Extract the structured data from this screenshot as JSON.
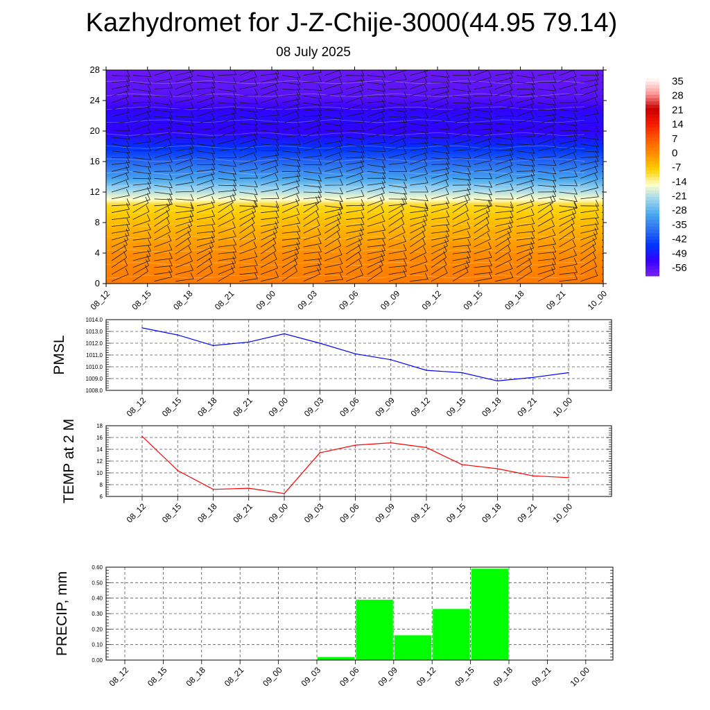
{
  "header": {
    "title": "Kazhydromet for J-Z-Chije-3000(44.95 79.14)",
    "date": "08 July 2025"
  },
  "colors": {
    "pmsl_line": "#0000ff",
    "temp_line": "#ff0000",
    "precip_bar": "#00ff00",
    "grid": "#555555"
  },
  "chart_data": [
    {
      "type": "heatmap",
      "x_ticks": [
        "08_12",
        "08_15",
        "08_18",
        "08_21",
        "09_00",
        "09_03",
        "09_06",
        "09_09",
        "09_12",
        "09_15",
        "09_18",
        "09_21",
        "10_00"
      ],
      "y_ticks": [
        "0",
        "4",
        "8",
        "12",
        "16",
        "20",
        "24",
        "28"
      ],
      "ylim": [
        0,
        28
      ],
      "colorbar_labels": [
        "35",
        "28",
        "21",
        "14",
        "7",
        "0",
        "-7",
        "-14",
        "-21",
        "-28",
        "-35",
        "-42",
        "-49",
        "-56"
      ],
      "colorbar_range": [
        -63,
        42
      ],
      "colormap": [
        "#7a22f0",
        "#3300ff",
        "#0033ff",
        "#2a6ef0",
        "#46a6ef",
        "#9ad4ee",
        "#ffffc8",
        "#ffd000",
        "#ff9000",
        "#ff5a00",
        "#f51a00",
        "#c80000",
        "#ff9999",
        "#ffffff"
      ],
      "vertical_profile": [
        {
          "level": 0,
          "value": 5
        },
        {
          "level": 4,
          "value": 2
        },
        {
          "level": 8,
          "value": -4
        },
        {
          "level": 10.4,
          "value": -8
        },
        {
          "level": 11,
          "value": -14
        },
        {
          "level": 12.5,
          "value": -23
        },
        {
          "level": 14,
          "value": -32
        },
        {
          "level": 17,
          "value": -44
        },
        {
          "level": 20,
          "value": -55
        },
        {
          "level": 22,
          "value": -53
        },
        {
          "level": 24.5,
          "value": -59
        },
        {
          "level": 28,
          "value": -61
        }
      ],
      "wind_barbs": true
    },
    {
      "type": "line",
      "ylabel": "PMSL",
      "x": [
        "08_12",
        "08_15",
        "08_18",
        "08_21",
        "09_00",
        "09_03",
        "09_06",
        "09_09",
        "09_12",
        "09_15",
        "09_18",
        "09_21",
        "10_00"
      ],
      "y_ticks": [
        "1008.0",
        "1009.0",
        "1010.0",
        "1011.0",
        "1012.0",
        "1013.0",
        "1014.0"
      ],
      "ylim": [
        1008,
        1014
      ],
      "values": [
        1013.3,
        1012.7,
        1011.8,
        1012.1,
        1012.8,
        1012.0,
        1011.1,
        1010.6,
        1009.7,
        1009.5,
        1008.8,
        1009.1,
        1009.5
      ],
      "grid": true
    },
    {
      "type": "line",
      "ylabel": "TEMP at 2 M",
      "x": [
        "08_12",
        "08_15",
        "08_18",
        "08_21",
        "09_00",
        "09_03",
        "09_06",
        "09_09",
        "09_12",
        "09_15",
        "09_18",
        "09_21",
        "10_00"
      ],
      "y_ticks": [
        "6",
        "8",
        "10",
        "12",
        "14",
        "16",
        "18"
      ],
      "ylim": [
        6,
        18
      ],
      "values": [
        16.2,
        10.4,
        7.2,
        7.4,
        6.5,
        13.4,
        14.7,
        15.1,
        14.3,
        11.4,
        10.7,
        9.5,
        9.2
      ],
      "grid": true
    },
    {
      "type": "bar",
      "ylabel": "PRECIP, mm",
      "categories": [
        "08_12",
        "08_15",
        "08_18",
        "08_21",
        "09_00",
        "09_03",
        "09_06",
        "09_09",
        "09_12",
        "09_15",
        "09_18",
        "09_21",
        "10_00"
      ],
      "y_ticks": [
        "0.00",
        "0.10",
        "0.20",
        "0.30",
        "0.40",
        "0.50",
        "0.60"
      ],
      "ylim": [
        0,
        0.6
      ],
      "values": [
        0,
        0,
        0,
        0,
        0,
        0,
        0.02,
        0.39,
        0.16,
        0.33,
        0.59,
        0,
        0
      ],
      "grid": true
    }
  ]
}
